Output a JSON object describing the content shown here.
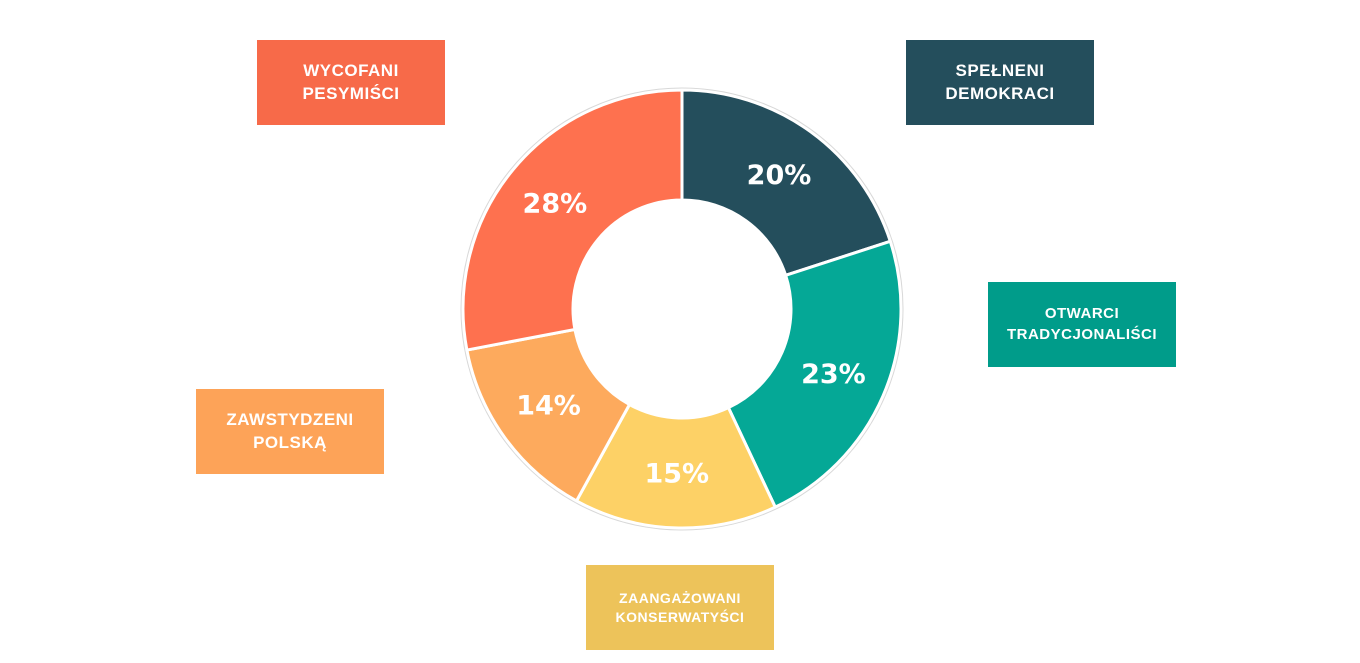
{
  "chart_data": {
    "type": "pie",
    "donut": true,
    "categories": [
      [
        "SPEŁNENI",
        "DEMOKRACI"
      ],
      [
        "OTWARCI",
        "TRADYCJONALIŚCI"
      ],
      [
        "ZAANGAŻOWANI",
        "KONSERWATYŚCI"
      ],
      [
        "ZAWSTYDZENI",
        "POLSKĄ"
      ],
      [
        "WYCOFANI",
        "PESYMIŚCI"
      ]
    ],
    "values": [
      20,
      23,
      15,
      14,
      28
    ],
    "value_labels": [
      "20%",
      "23%",
      "15%",
      "14%",
      "28%"
    ],
    "slice_colors": [
      "#244E5C",
      "#05A896",
      "#FDD166",
      "#FDAA5D",
      "#FE714F"
    ],
    "legend_colors": [
      "#244E5C",
      "#009C8A",
      "#EDC35A",
      "#FDA358",
      "#F76A49"
    ],
    "start_angle_deg": 0,
    "direction": "clockwise"
  }
}
